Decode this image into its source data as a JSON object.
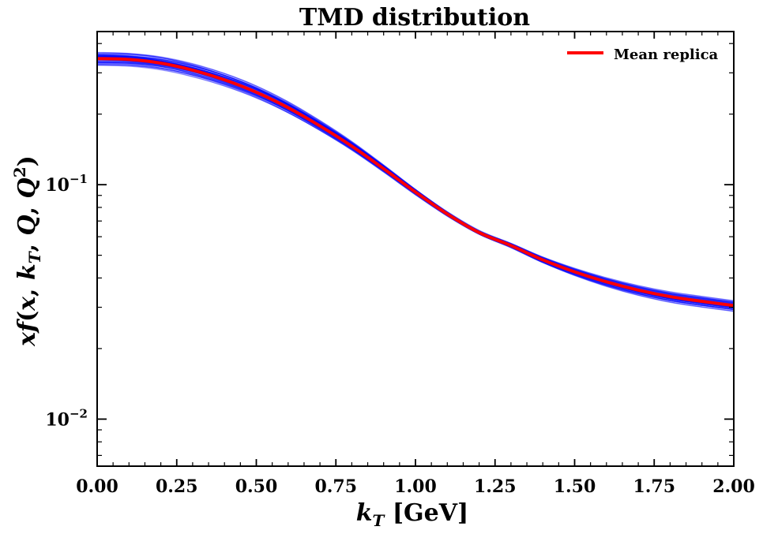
{
  "chart_data": {
    "type": "line",
    "title": "TMD distribution",
    "xlabel": "k_T [GeV]",
    "ylabel": "x f(x, k_T, Q, Q^2)",
    "xlim": [
      0.0,
      2.0
    ],
    "ylim": [
      0.0063,
      0.45
    ],
    "yscale": "log",
    "grid": false,
    "legend_position": "top-right",
    "x_ticks": [
      "0.00",
      "0.25",
      "0.50",
      "0.75",
      "1.00",
      "1.25",
      "1.50",
      "1.75",
      "2.00"
    ],
    "y_ticks": [
      {
        "value": 0.01,
        "label": "10",
        "exp": "−2"
      },
      {
        "value": 0.1,
        "label": "10",
        "exp": "−1"
      }
    ],
    "x": [
      0.0,
      0.1,
      0.2,
      0.3,
      0.4,
      0.5,
      0.6,
      0.7,
      0.8,
      0.9,
      1.0,
      1.1,
      1.2,
      1.3,
      1.4,
      1.5,
      1.6,
      1.7,
      1.8,
      1.9,
      2.0
    ],
    "series": [
      {
        "name": "Mean replica",
        "color": "#ff0000",
        "values": [
          0.345,
          0.342,
          0.33,
          0.308,
          0.28,
          0.248,
          0.213,
          0.178,
          0.146,
          0.117,
          0.093,
          0.075,
          0.0625,
          0.055,
          0.0478,
          0.0425,
          0.0385,
          0.0355,
          0.0333,
          0.0318,
          0.0305
        ]
      }
    ],
    "replica_band": {
      "color": "#0000ff",
      "count": 60,
      "relative_spread_low_kt": 0.08,
      "relative_spread_high_kt": 0.05
    }
  }
}
